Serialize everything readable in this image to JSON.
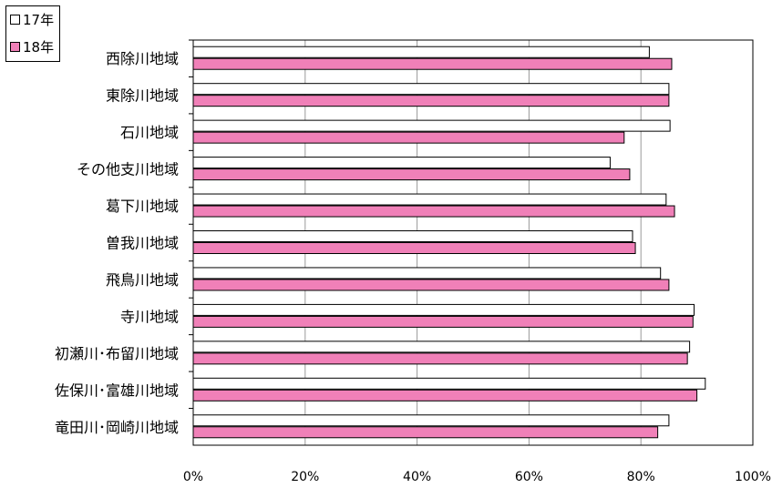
{
  "chart_data": {
    "type": "bar",
    "orientation": "horizontal",
    "categories": [
      "西除川地域",
      "東除川地域",
      "石川地域",
      "その他支川地域",
      "葛下川地域",
      "曽我川地域",
      "飛鳥川地域",
      "寺川地域",
      "初瀬川･布留川地域",
      "佐保川･富雄川地域",
      "竜田川･岡崎川地域"
    ],
    "series": [
      {
        "name": "17年",
        "color": "#ffffff",
        "values": [
          81.5,
          85.0,
          85.2,
          74.5,
          84.5,
          78.5,
          83.5,
          89.5,
          88.7,
          91.5,
          85.0
        ]
      },
      {
        "name": "18年",
        "color": "#f080b8",
        "values": [
          85.5,
          85.0,
          77.0,
          78.0,
          86.0,
          79.0,
          85.0,
          89.3,
          88.3,
          90.0,
          83.0
        ]
      }
    ],
    "xlim": [
      0,
      100
    ],
    "xticks": [
      0,
      20,
      40,
      60,
      80,
      100
    ],
    "xtick_labels": [
      "0%",
      "20%",
      "40%",
      "60%",
      "80%",
      "100%"
    ],
    "grid": "vertical",
    "legend_position": "top-left",
    "title": "",
    "xlabel": "",
    "ylabel": ""
  }
}
